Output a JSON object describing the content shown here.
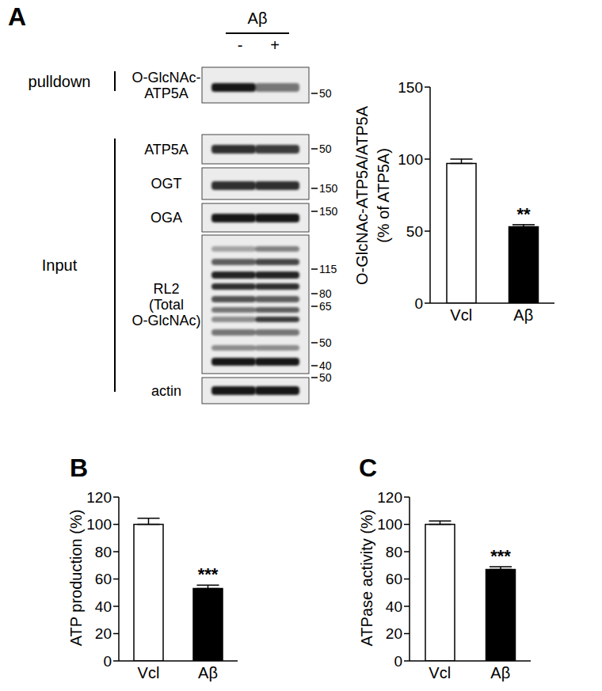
{
  "panel_labels": [
    "A",
    "B",
    "C"
  ],
  "blot": {
    "treatment": "Aβ",
    "lanes": [
      "-",
      "+"
    ],
    "groups": [
      {
        "label": "pulldown",
        "rows": [
          {
            "label": [
              "O-GlcNAc-",
              "ATP5A"
            ],
            "markers": [
              50
            ]
          }
        ]
      },
      {
        "label": "Input",
        "rows": [
          {
            "label": [
              "ATP5A"
            ],
            "markers": [
              50
            ]
          },
          {
            "label": [
              "OGT"
            ],
            "markers": [
              150
            ]
          },
          {
            "label": [
              "OGA"
            ],
            "markers": [
              150
            ]
          },
          {
            "label": [
              "RL2",
              "(Total",
              "O-GlcNAc)"
            ],
            "markers": [
              115,
              80,
              65,
              50,
              40
            ]
          },
          {
            "label": [
              "actin"
            ],
            "markers": [
              50
            ]
          }
        ]
      }
    ]
  },
  "chart_data": [
    {
      "type": "bar",
      "categories": [
        "Vcl",
        "Aβ"
      ],
      "values": [
        97,
        53
      ],
      "errors": [
        3,
        1.5
      ],
      "colors": [
        "#ffffff",
        "#000000"
      ],
      "ylim": [
        0,
        150
      ],
      "yticks": [
        0,
        50,
        100,
        150
      ],
      "y_label": [
        "O-GlcNAc-ATP5A/ATP5A",
        "(% of ATP5A)"
      ],
      "annotations": [
        {
          "category": "Aβ",
          "text": "**"
        }
      ]
    },
    {
      "type": "bar",
      "categories": [
        "Vcl",
        "Aβ"
      ],
      "values": [
        100,
        53
      ],
      "errors": [
        4.5,
        2.5
      ],
      "colors": [
        "#ffffff",
        "#000000"
      ],
      "ylim": [
        0,
        120
      ],
      "yticks": [
        0,
        20,
        40,
        60,
        80,
        100,
        120
      ],
      "y_label": [
        "ATP production (%)"
      ],
      "annotations": [
        {
          "category": "Aβ",
          "text": "***"
        }
      ]
    },
    {
      "type": "bar",
      "categories": [
        "Vcl",
        "Aβ"
      ],
      "values": [
        100,
        67
      ],
      "errors": [
        2.5,
        2
      ],
      "colors": [
        "#ffffff",
        "#000000"
      ],
      "ylim": [
        0,
        120
      ],
      "yticks": [
        0,
        20,
        40,
        60,
        80,
        100,
        120
      ],
      "y_label": [
        "ATPase activity (%)"
      ],
      "annotations": [
        {
          "category": "Aβ",
          "text": "***"
        }
      ]
    }
  ]
}
